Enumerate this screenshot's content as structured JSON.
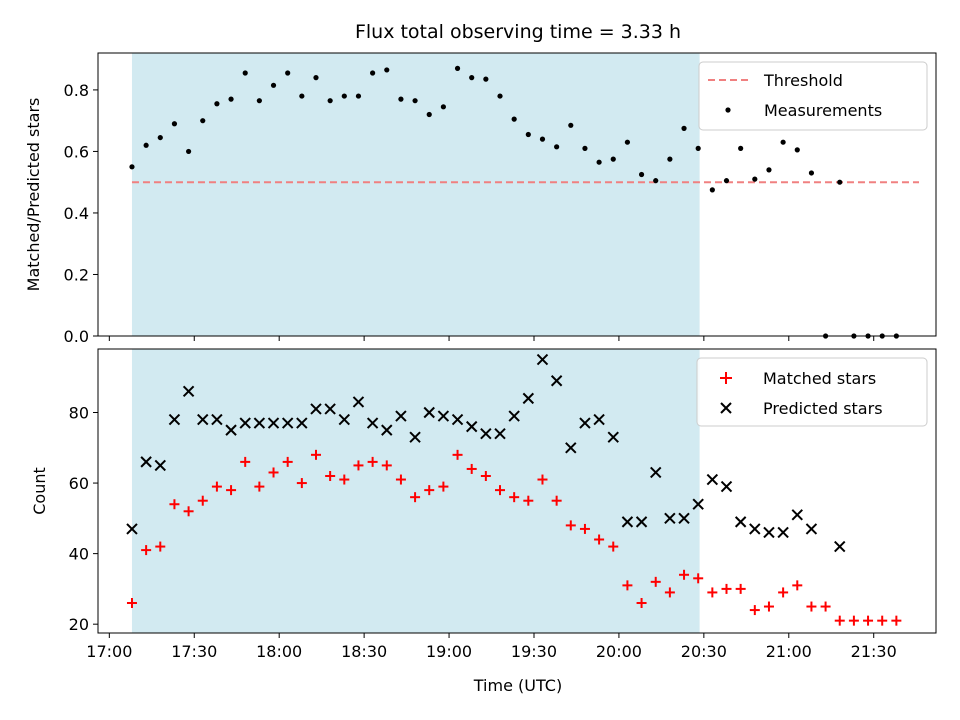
{
  "chart_data": [
    {
      "type": "scatter",
      "title": "Flux total observing time = 3.33 h",
      "xlabel": "",
      "ylabel": "Matched/Predicted stars",
      "x_ticks": [
        "17:00",
        "17:30",
        "18:00",
        "18:30",
        "19:00",
        "19:30",
        "20:00",
        "20:30",
        "21:00",
        "21:30"
      ],
      "x_tick_minutes": [
        1020,
        1050,
        1080,
        1110,
        1140,
        1170,
        1200,
        1230,
        1260,
        1290
      ],
      "xlim_minutes": [
        1016,
        1312
      ],
      "ylim": [
        0,
        0.92
      ],
      "y_ticks": [
        0.0,
        0.2,
        0.4,
        0.6,
        0.8
      ],
      "shaded_span_minutes": [
        1028,
        1228.5
      ],
      "shade_color": "#add8e6",
      "legend_position": "upper right",
      "threshold": {
        "name": "Threshold",
        "value": 0.5,
        "x_minutes": [
          1028,
          1306
        ],
        "color": "#f08080"
      },
      "series": [
        {
          "name": "Measurements",
          "color": "#000000",
          "x_minutes": [
            1028,
            1033,
            1038,
            1043,
            1048,
            1053,
            1058,
            1063,
            1068,
            1073,
            1078,
            1083,
            1088,
            1093,
            1098,
            1103,
            1108,
            1113,
            1118,
            1123,
            1128,
            1133,
            1138,
            1143,
            1148,
            1153,
            1158,
            1163,
            1168,
            1173,
            1178,
            1183,
            1188,
            1193,
            1198,
            1203,
            1208,
            1213,
            1218,
            1223,
            1228,
            1233,
            1238,
            1243,
            1248,
            1253,
            1258,
            1263,
            1268,
            1273,
            1278,
            1283,
            1288,
            1293,
            1298
          ],
          "values": [
            0.55,
            0.62,
            0.645,
            0.69,
            0.6,
            0.7,
            0.755,
            0.77,
            0.855,
            0.765,
            0.815,
            0.855,
            0.78,
            0.84,
            0.765,
            0.78,
            0.78,
            0.855,
            0.865,
            0.77,
            0.765,
            0.72,
            0.745,
            0.87,
            0.84,
            0.835,
            0.78,
            0.705,
            0.655,
            0.64,
            0.615,
            0.685,
            0.61,
            0.565,
            0.575,
            0.63,
            0.525,
            0.505,
            0.575,
            0.675,
            0.61,
            0.475,
            0.505,
            0.61,
            0.51,
            0.54,
            0.63,
            0.605,
            0.53,
            0.0,
            0.5,
            0.0,
            0.0,
            0.0,
            0.0
          ]
        }
      ]
    },
    {
      "type": "scatter",
      "title": "",
      "xlabel": "Time (UTC)",
      "ylabel": "Count",
      "x_ticks": [
        "17:00",
        "17:30",
        "18:00",
        "18:30",
        "19:00",
        "19:30",
        "20:00",
        "20:30",
        "21:00",
        "21:30"
      ],
      "x_tick_minutes": [
        1020,
        1050,
        1080,
        1110,
        1140,
        1170,
        1200,
        1230,
        1260,
        1290
      ],
      "xlim_minutes": [
        1016,
        1312
      ],
      "ylim": [
        17.5,
        98
      ],
      "y_ticks": [
        20,
        40,
        60,
        80
      ],
      "shaded_span_minutes": [
        1028,
        1228.5
      ],
      "shade_color": "#add8e6",
      "legend_position": "upper right",
      "series": [
        {
          "name": "Matched stars",
          "marker": "plus",
          "color": "#ff0000",
          "x_minutes": [
            1028,
            1033,
            1038,
            1043,
            1048,
            1053,
            1058,
            1063,
            1068,
            1073,
            1078,
            1083,
            1088,
            1093,
            1098,
            1103,
            1108,
            1113,
            1118,
            1123,
            1128,
            1133,
            1138,
            1143,
            1148,
            1153,
            1158,
            1163,
            1168,
            1173,
            1178,
            1183,
            1188,
            1193,
            1198,
            1203,
            1208,
            1213,
            1218,
            1223,
            1228,
            1233,
            1238,
            1243,
            1248,
            1253,
            1258,
            1263,
            1268,
            1273,
            1278,
            1283,
            1288,
            1293,
            1298
          ],
          "values": [
            26,
            41,
            42,
            54,
            52,
            55,
            59,
            58,
            66,
            59,
            63,
            66,
            60,
            68,
            62,
            61,
            65,
            66,
            65,
            61,
            56,
            58,
            59,
            68,
            64,
            62,
            58,
            56,
            55,
            61,
            55,
            48,
            47,
            44,
            42,
            31,
            26,
            32,
            29,
            34,
            33,
            29,
            30,
            30,
            24,
            25,
            29,
            31,
            25,
            25,
            21,
            21,
            21,
            21,
            21
          ]
        },
        {
          "name": "Predicted stars",
          "marker": "x",
          "color": "#000000",
          "x_minutes": [
            1028,
            1033,
            1038,
            1043,
            1048,
            1053,
            1058,
            1063,
            1068,
            1073,
            1078,
            1083,
            1088,
            1093,
            1098,
            1103,
            1108,
            1113,
            1118,
            1123,
            1128,
            1133,
            1138,
            1143,
            1148,
            1153,
            1158,
            1163,
            1168,
            1173,
            1178,
            1183,
            1188,
            1193,
            1198,
            1203,
            1208,
            1213,
            1218,
            1223,
            1228,
            1233,
            1238,
            1243,
            1248,
            1253,
            1258,
            1263,
            1268,
            1278
          ],
          "values": [
            47,
            66,
            65,
            78,
            86,
            78,
            78,
            75,
            77,
            77,
            77,
            77,
            77,
            81,
            81,
            78,
            83,
            77,
            75,
            79,
            73,
            80,
            79,
            78,
            76,
            74,
            74,
            79,
            84,
            95,
            89,
            70,
            77,
            78,
            73,
            49,
            49,
            63,
            50,
            50,
            54,
            61,
            59,
            49,
            47,
            46,
            46,
            51,
            47,
            42
          ]
        }
      ]
    }
  ]
}
